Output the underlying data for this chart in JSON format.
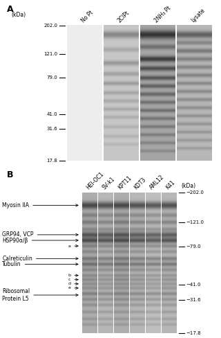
{
  "panel_a": {
    "label": "A",
    "lanes": [
      "No Pt",
      "2ClPt",
      "2NH₃ Pt",
      "Lysate"
    ],
    "kda_markers": [
      202.0,
      121.0,
      79.0,
      41.0,
      31.6,
      17.8
    ],
    "kda_label": "(kDa)"
  },
  "panel_b": {
    "label": "B",
    "lanes": [
      "HEI-OC1",
      "SV-k1",
      "KPT11",
      "KDT3",
      "AML12",
      "K41"
    ],
    "kda_markers": [
      202.0,
      121.0,
      79.0,
      41.0,
      31.6,
      17.8
    ],
    "kda_label": "(kDa)"
  },
  "bg_color": "#ffffff"
}
